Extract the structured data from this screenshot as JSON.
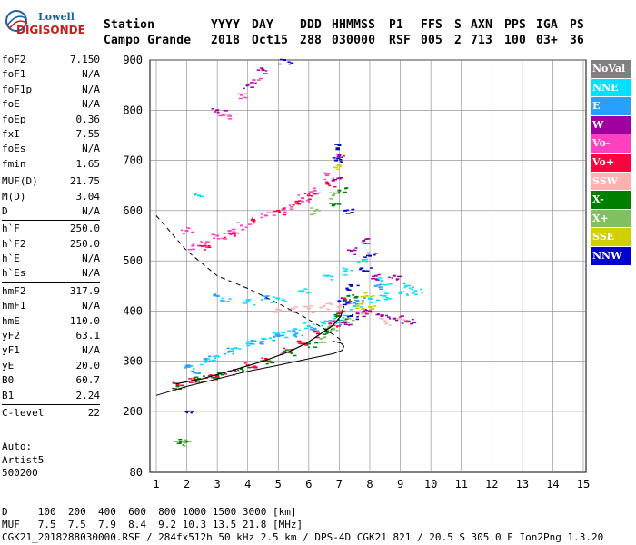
{
  "logo": {
    "line1": "Lowell",
    "line2": "DIGISONDE"
  },
  "header": {
    "labels": [
      "Station",
      "YYYY",
      "DAY",
      "DDD",
      "HHMMSS",
      "P1",
      "FFS",
      "S",
      "AXN",
      "PPS",
      "IGA",
      "PS"
    ],
    "values": [
      "Campo Grande",
      "2018",
      "Oct15",
      "288",
      "030000",
      "RSF",
      "005",
      "2",
      "713",
      "100",
      "03+",
      "36"
    ]
  },
  "params": [
    {
      "name": "foF2",
      "value": "7.150"
    },
    {
      "name": "foF1",
      "value": "N/A"
    },
    {
      "name": "foF1p",
      "value": "N/A"
    },
    {
      "name": "foE",
      "value": "N/A"
    },
    {
      "name": "foEp",
      "value": "0.36"
    },
    {
      "name": "fxI",
      "value": "7.55"
    },
    {
      "name": "foEs",
      "value": "N/A"
    },
    {
      "name": "fmin",
      "value": "1.65"
    },
    {
      "sep": true
    },
    {
      "name": "MUF(D)",
      "value": "21.75"
    },
    {
      "name": "M(D)",
      "value": "3.04"
    },
    {
      "name": "D",
      "value": "N/A"
    },
    {
      "sep": true
    },
    {
      "name": "h`F",
      "value": "250.0"
    },
    {
      "name": "h`F2",
      "value": "250.0"
    },
    {
      "name": "h`E",
      "value": "N/A"
    },
    {
      "name": "h`Es",
      "value": "N/A"
    },
    {
      "sep": true
    },
    {
      "name": "hmF2",
      "value": "317.9"
    },
    {
      "name": "hmF1",
      "value": "N/A"
    },
    {
      "name": "hmE",
      "value": "110.0"
    },
    {
      "name": "yF2",
      "value": "63.1"
    },
    {
      "name": "yF1",
      "value": "N/A"
    },
    {
      "name": "yE",
      "value": "20.0"
    },
    {
      "name": "B0",
      "value": "60.7"
    },
    {
      "name": "B1",
      "value": "2.24"
    },
    {
      "sep": true
    },
    {
      "name": "C-level",
      "value": "22"
    }
  ],
  "auto": {
    "line1": "Auto:",
    "line2": "Artist5",
    "line3": "500200"
  },
  "legend": [
    {
      "label": "NoVal",
      "bg": "#808080",
      "fg": "#ffffff"
    },
    {
      "label": "NNE",
      "bg": "#00e0ff",
      "fg": "#ffffff"
    },
    {
      "label": "E",
      "bg": "#28a0ff",
      "fg": "#ffffff"
    },
    {
      "label": "W",
      "bg": "#a000a0",
      "fg": "#ffffff"
    },
    {
      "label": "Vo-",
      "bg": "#ff40c0",
      "fg": "#ffffff"
    },
    {
      "label": "Vo+",
      "bg": "#ff0040",
      "fg": "#ffffff"
    },
    {
      "label": "SSW",
      "bg": "#ffb0b0",
      "fg": "#ffffff"
    },
    {
      "label": "X-",
      "bg": "#008000",
      "fg": "#ffffff"
    },
    {
      "label": "X+",
      "bg": "#80c060",
      "fg": "#ffffff"
    },
    {
      "label": "SSE",
      "bg": "#d0d000",
      "fg": "#ffffff"
    },
    {
      "label": "NNW",
      "bg": "#0000d0",
      "fg": "#ffffff"
    }
  ],
  "footer": {
    "row1": "D     100  200  400  600  800 1000 1500 3000 [km]",
    "row2": "MUF   7.5  7.5  7.9  8.4  9.2 10.3 13.5 21.8 [MHz]",
    "row3": "CGK21_2018288030000.RSF / 284fx512h 50 kHz 2.5 km / DPS-4D CGK21 821 / 20.5 S 305.0 E Ion2Png 1.3.20"
  },
  "chart_data": {
    "type": "scatter",
    "title": "",
    "xlabel": "",
    "ylabel": "",
    "xlim": [
      0.9,
      15.2
    ],
    "ylim": [
      80,
      900
    ],
    "xticks": [
      1,
      2,
      3,
      4,
      5,
      6,
      7,
      8,
      9,
      10,
      11,
      12,
      13,
      14,
      15
    ],
    "yticks": [
      80,
      200,
      300,
      400,
      500,
      600,
      700,
      800,
      900
    ],
    "grid": true,
    "legend_position": "right",
    "series": [
      {
        "name": "NNE",
        "color": "#00e0ff",
        "points": [
          [
            2.6,
            300
          ],
          [
            3.0,
            310
          ],
          [
            3.5,
            325
          ],
          [
            4.0,
            335
          ],
          [
            4.5,
            345
          ],
          [
            5.0,
            355
          ],
          [
            5.5,
            360
          ],
          [
            6.0,
            370
          ],
          [
            6.5,
            375
          ],
          [
            7.0,
            390
          ],
          [
            7.5,
            410
          ],
          [
            8.0,
            425
          ],
          [
            8.5,
            430
          ],
          [
            9.0,
            435
          ],
          [
            9.5,
            440
          ],
          [
            3.2,
            420
          ],
          [
            4.0,
            420
          ],
          [
            5.0,
            425
          ],
          [
            5.8,
            440
          ],
          [
            6.6,
            470
          ],
          [
            7.2,
            480
          ],
          [
            7.8,
            500
          ],
          [
            8.4,
            460
          ],
          [
            9.2,
            450
          ],
          [
            2.4,
            630
          ]
        ]
      },
      {
        "name": "E",
        "color": "#28a0ff",
        "points": [
          [
            2.0,
            290
          ],
          [
            2.6,
            305
          ],
          [
            3.4,
            320
          ],
          [
            4.2,
            340
          ],
          [
            5.0,
            350
          ],
          [
            5.6,
            355
          ],
          [
            6.2,
            365
          ],
          [
            6.8,
            380
          ],
          [
            7.6,
            420
          ],
          [
            8.2,
            450
          ],
          [
            3.0,
            430
          ],
          [
            4.6,
            425
          ],
          [
            2.2,
            280
          ]
        ]
      },
      {
        "name": "W",
        "color": "#a000a0",
        "points": [
          [
            7.2,
            380
          ],
          [
            7.6,
            395
          ],
          [
            8.0,
            400
          ],
          [
            8.4,
            390
          ],
          [
            8.8,
            385
          ],
          [
            9.2,
            380
          ],
          [
            7.4,
            520
          ],
          [
            7.8,
            540
          ],
          [
            8.2,
            470
          ],
          [
            6.8,
            660
          ],
          [
            7.0,
            710
          ],
          [
            3.0,
            800
          ],
          [
            4.0,
            850
          ],
          [
            4.5,
            880
          ],
          [
            8.8,
            470
          ]
        ]
      },
      {
        "name": "Vo-",
        "color": "#ff40c0",
        "points": [
          [
            2.2,
            530
          ],
          [
            3.0,
            550
          ],
          [
            3.8,
            570
          ],
          [
            4.6,
            590
          ],
          [
            5.2,
            605
          ],
          [
            5.8,
            625
          ],
          [
            6.2,
            640
          ],
          [
            6.6,
            670
          ],
          [
            3.2,
            790
          ],
          [
            3.8,
            830
          ],
          [
            4.2,
            860
          ],
          [
            2.0,
            560
          ],
          [
            2.6,
            535
          ],
          [
            3.4,
            560
          ]
        ]
      },
      {
        "name": "Vo+",
        "color": "#ff0040",
        "points": [
          [
            1.7,
            253
          ],
          [
            2.2,
            262
          ],
          [
            2.8,
            272
          ],
          [
            3.4,
            280
          ],
          [
            4.0,
            292
          ],
          [
            4.6,
            305
          ],
          [
            5.2,
            320
          ],
          [
            5.8,
            335
          ],
          [
            6.3,
            355
          ],
          [
            6.7,
            375
          ],
          [
            7.0,
            395
          ],
          [
            7.2,
            420
          ],
          [
            2.6,
            530
          ],
          [
            3.4,
            555
          ],
          [
            4.2,
            580
          ],
          [
            5.0,
            600
          ],
          [
            5.6,
            615
          ],
          [
            6.0,
            630
          ],
          [
            6.6,
            655
          ]
        ]
      },
      {
        "name": "SSW",
        "color": "#ffb0b0",
        "points": [
          [
            5.0,
            400
          ],
          [
            5.5,
            405
          ],
          [
            6.0,
            405
          ],
          [
            6.5,
            410
          ],
          [
            7.0,
            408
          ],
          [
            7.8,
            395
          ],
          [
            8.5,
            380
          ],
          [
            9.0,
            385
          ]
        ]
      },
      {
        "name": "X-",
        "color": "#008000",
        "points": [
          [
            1.7,
            250
          ],
          [
            2.4,
            265
          ],
          [
            3.0,
            272
          ],
          [
            3.8,
            285
          ],
          [
            4.6,
            300
          ],
          [
            5.4,
            318
          ],
          [
            6.0,
            335
          ],
          [
            6.6,
            360
          ],
          [
            7.0,
            390
          ],
          [
            7.3,
            430
          ],
          [
            1.8,
            140
          ],
          [
            6.8,
            610
          ],
          [
            7.0,
            640
          ]
        ]
      },
      {
        "name": "X+",
        "color": "#80c060",
        "points": [
          [
            6.4,
            345
          ],
          [
            6.8,
            365
          ],
          [
            7.2,
            380
          ],
          [
            6.2,
            600
          ],
          [
            6.8,
            630
          ],
          [
            1.9,
            140
          ]
        ]
      },
      {
        "name": "SSE",
        "color": "#d0d000",
        "points": [
          [
            7.6,
            410
          ],
          [
            7.9,
            430
          ],
          [
            8.1,
            405
          ],
          [
            7.0,
            690
          ]
        ]
      },
      {
        "name": "NNW",
        "color": "#0000d0",
        "points": [
          [
            7.4,
            450
          ],
          [
            7.8,
            480
          ],
          [
            8.0,
            510
          ],
          [
            7.0,
            420
          ],
          [
            6.9,
            700
          ],
          [
            7.0,
            730
          ],
          [
            7.2,
            600
          ],
          [
            2.0,
            200
          ],
          [
            5.2,
            900
          ],
          [
            7.4,
            390
          ]
        ]
      }
    ],
    "profile_lines": {
      "solid": [
        [
          1.0,
          232
        ],
        [
          2.0,
          250
        ],
        [
          3.0,
          265
        ],
        [
          4.0,
          280
        ],
        [
          5.0,
          292
        ],
        [
          6.0,
          305
        ],
        [
          6.8,
          315
        ],
        [
          7.1,
          322
        ],
        [
          7.15,
          330
        ],
        [
          7.05,
          336
        ],
        [
          6.8,
          340
        ]
      ],
      "trace": [
        [
          1.65,
          255
        ],
        [
          2.5,
          265
        ],
        [
          3.5,
          282
        ],
        [
          4.5,
          300
        ],
        [
          5.3,
          318
        ],
        [
          5.9,
          335
        ],
        [
          6.4,
          355
        ],
        [
          6.8,
          372
        ],
        [
          7.05,
          390
        ],
        [
          7.15,
          410
        ]
      ],
      "dashed": [
        [
          1.0,
          590
        ],
        [
          1.5,
          555
        ],
        [
          2.0,
          520
        ],
        [
          3.0,
          470
        ],
        [
          4.0,
          445
        ],
        [
          5.0,
          415
        ],
        [
          5.8,
          390
        ],
        [
          6.5,
          365
        ],
        [
          7.0,
          345
        ],
        [
          7.1,
          335
        ]
      ]
    }
  }
}
